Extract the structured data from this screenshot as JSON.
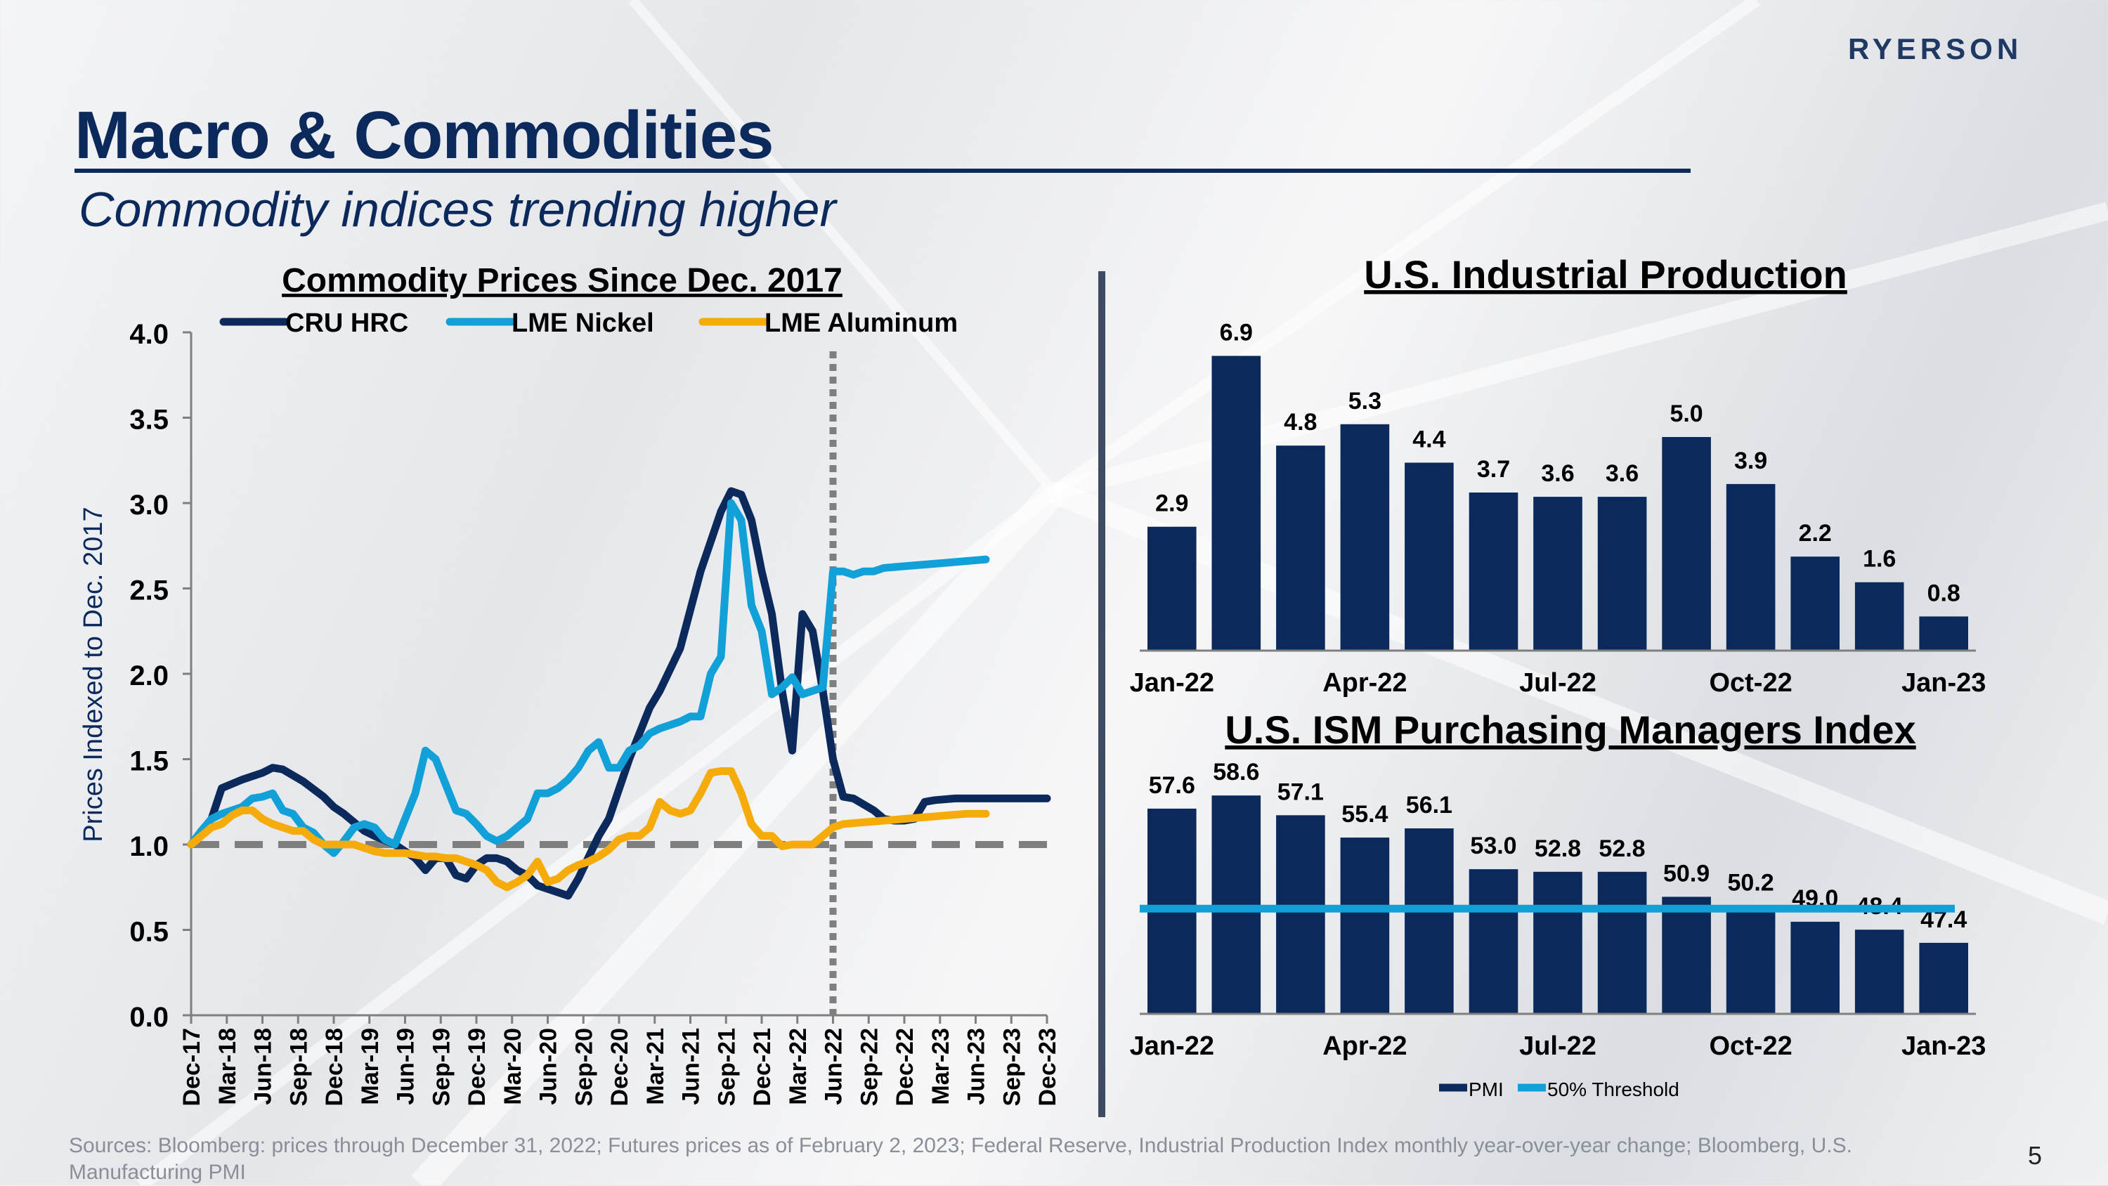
{
  "header": {
    "logo": "RYERSON",
    "title": "Macro & Commodities",
    "subtitle": "Commodity indices trending higher"
  },
  "footer": {
    "sources": "Sources: Bloomberg: prices through December 31, 2022; Futures prices as of February 2, 2023; Federal Reserve, Industrial Production Index monthly year-over-year change; Bloomberg, U.S. Manufacturing PMI",
    "page_number": "5"
  },
  "colors": {
    "navy": "#0b2a5b",
    "nickel": "#12a0d8",
    "aluminum": "#f5ab0a",
    "baseline": "#7f7f7f"
  },
  "chart_data": [
    {
      "type": "line",
      "title": "Commodity Prices Since Dec. 2017",
      "ylabel": "Prices Indexed to Dec. 2017",
      "xlabel": "",
      "ylim": [
        0,
        4
      ],
      "yticks": [
        "0.0",
        "0.5",
        "1.0",
        "1.5",
        "2.0",
        "2.5",
        "3.0",
        "3.5",
        "4.0"
      ],
      "x_tick_labels": [
        "Dec-17",
        "Mar-18",
        "Jun-18",
        "Sep-18",
        "Dec-18",
        "Mar-19",
        "Jun-19",
        "Sep-19",
        "Dec-19",
        "Mar-20",
        "Jun-20",
        "Sep-20",
        "Dec-20",
        "Mar-21",
        "Jun-21",
        "Sep-21",
        "Dec-21",
        "Mar-22",
        "Jun-22",
        "Sep-22",
        "Dec-22",
        "Mar-23",
        "Jun-23",
        "Sep-23",
        "Dec-23"
      ],
      "futures_divider_month": 63,
      "reference_line": 1.0,
      "legend_position": "top",
      "series": [
        {
          "name": "CRU HRC",
          "color": "#0b2a5b",
          "points": [
            [
              0,
              1.0
            ],
            [
              2,
              1.15
            ],
            [
              3,
              1.33
            ],
            [
              5,
              1.38
            ],
            [
              7,
              1.42
            ],
            [
              8,
              1.45
            ],
            [
              9,
              1.44
            ],
            [
              11,
              1.37
            ],
            [
              13,
              1.28
            ],
            [
              14,
              1.22
            ],
            [
              15,
              1.18
            ],
            [
              17,
              1.08
            ],
            [
              18,
              1.05
            ],
            [
              20,
              1.0
            ],
            [
              22,
              0.92
            ],
            [
              23,
              0.85
            ],
            [
              24,
              0.92
            ],
            [
              25,
              0.92
            ],
            [
              26,
              0.82
            ],
            [
              27,
              0.8
            ],
            [
              28,
              0.88
            ],
            [
              29,
              0.92
            ],
            [
              30,
              0.92
            ],
            [
              31,
              0.9
            ],
            [
              32,
              0.85
            ],
            [
              33,
              0.82
            ],
            [
              34,
              0.76
            ],
            [
              36,
              0.72
            ],
            [
              37,
              0.7
            ],
            [
              38,
              0.8
            ],
            [
              40,
              1.05
            ],
            [
              41,
              1.15
            ],
            [
              43,
              1.5
            ],
            [
              44,
              1.65
            ],
            [
              45,
              1.8
            ],
            [
              46,
              1.9
            ],
            [
              48,
              2.15
            ],
            [
              50,
              2.6
            ],
            [
              52,
              2.95
            ],
            [
              53,
              3.07
            ],
            [
              54,
              3.05
            ],
            [
              55,
              2.9
            ],
            [
              56,
              2.6
            ],
            [
              57,
              2.35
            ],
            [
              58,
              1.9
            ],
            [
              59,
              1.55
            ],
            [
              60,
              2.35
            ],
            [
              61,
              2.25
            ],
            [
              62,
              1.9
            ],
            [
              63,
              1.5
            ],
            [
              64,
              1.28
            ],
            [
              65,
              1.27
            ],
            [
              67,
              1.2
            ],
            [
              68,
              1.15
            ],
            [
              69,
              1.14
            ],
            [
              70,
              1.14
            ],
            [
              71,
              1.15
            ],
            [
              72,
              1.25
            ],
            [
              73,
              1.26
            ],
            [
              75,
              1.27
            ],
            [
              76,
              1.27
            ],
            [
              78,
              1.27
            ],
            [
              80,
              1.27
            ],
            [
              82,
              1.27
            ],
            [
              84,
              1.27
            ]
          ]
        },
        {
          "name": "LME Nickel",
          "color": "#12a0d8",
          "points": [
            [
              0,
              1.0
            ],
            [
              1,
              1.08
            ],
            [
              2,
              1.15
            ],
            [
              3,
              1.18
            ],
            [
              4,
              1.2
            ],
            [
              5,
              1.22
            ],
            [
              6,
              1.27
            ],
            [
              7,
              1.28
            ],
            [
              8,
              1.3
            ],
            [
              9,
              1.2
            ],
            [
              10,
              1.18
            ],
            [
              11,
              1.1
            ],
            [
              12,
              1.07
            ],
            [
              13,
              1.0
            ],
            [
              14,
              0.95
            ],
            [
              15,
              1.02
            ],
            [
              16,
              1.1
            ],
            [
              17,
              1.12
            ],
            [
              18,
              1.1
            ],
            [
              19,
              1.03
            ],
            [
              20,
              1.0
            ],
            [
              21,
              1.15
            ],
            [
              22,
              1.3
            ],
            [
              23,
              1.55
            ],
            [
              24,
              1.5
            ],
            [
              25,
              1.35
            ],
            [
              26,
              1.2
            ],
            [
              27,
              1.18
            ],
            [
              28,
              1.12
            ],
            [
              29,
              1.05
            ],
            [
              30,
              1.02
            ],
            [
              31,
              1.05
            ],
            [
              32,
              1.1
            ],
            [
              33,
              1.15
            ],
            [
              34,
              1.3
            ],
            [
              35,
              1.3
            ],
            [
              36,
              1.33
            ],
            [
              37,
              1.38
            ],
            [
              38,
              1.45
            ],
            [
              39,
              1.55
            ],
            [
              40,
              1.6
            ],
            [
              41,
              1.45
            ],
            [
              42,
              1.45
            ],
            [
              43,
              1.55
            ],
            [
              44,
              1.58
            ],
            [
              45,
              1.65
            ],
            [
              46,
              1.68
            ],
            [
              47,
              1.7
            ],
            [
              48,
              1.72
            ],
            [
              49,
              1.75
            ],
            [
              50,
              1.75
            ],
            [
              51,
              2.0
            ],
            [
              52,
              2.1
            ],
            [
              53,
              3.0
            ],
            [
              54,
              2.9
            ],
            [
              55,
              2.4
            ],
            [
              56,
              2.25
            ],
            [
              57,
              1.88
            ],
            [
              58,
              1.92
            ],
            [
              59,
              1.98
            ],
            [
              60,
              1.88
            ],
            [
              61,
              1.9
            ],
            [
              62,
              1.92
            ],
            [
              63,
              2.6
            ],
            [
              64,
              2.6
            ],
            [
              65,
              2.58
            ],
            [
              66,
              2.6
            ],
            [
              67,
              2.6
            ],
            [
              68,
              2.62
            ],
            [
              70,
              2.63
            ],
            [
              72,
              2.64
            ],
            [
              74,
              2.65
            ],
            [
              76,
              2.66
            ],
            [
              78,
              2.67
            ]
          ]
        },
        {
          "name": "LME Aluminum",
          "color": "#f5ab0a",
          "points": [
            [
              0,
              1.0
            ],
            [
              1,
              1.05
            ],
            [
              2,
              1.1
            ],
            [
              3,
              1.12
            ],
            [
              4,
              1.17
            ],
            [
              5,
              1.2
            ],
            [
              6,
              1.2
            ],
            [
              7,
              1.15
            ],
            [
              8,
              1.12
            ],
            [
              9,
              1.1
            ],
            [
              10,
              1.08
            ],
            [
              11,
              1.08
            ],
            [
              12,
              1.03
            ],
            [
              13,
              1.0
            ],
            [
              14,
              1.0
            ],
            [
              15,
              1.0
            ],
            [
              16,
              1.0
            ],
            [
              17,
              0.98
            ],
            [
              18,
              0.96
            ],
            [
              19,
              0.95
            ],
            [
              20,
              0.95
            ],
            [
              21,
              0.95
            ],
            [
              22,
              0.94
            ],
            [
              23,
              0.93
            ],
            [
              24,
              0.93
            ],
            [
              25,
              0.92
            ],
            [
              26,
              0.92
            ],
            [
              27,
              0.9
            ],
            [
              28,
              0.88
            ],
            [
              29,
              0.85
            ],
            [
              30,
              0.78
            ],
            [
              31,
              0.75
            ],
            [
              32,
              0.78
            ],
            [
              33,
              0.82
            ],
            [
              34,
              0.9
            ],
            [
              35,
              0.78
            ],
            [
              36,
              0.8
            ],
            [
              37,
              0.85
            ],
            [
              38,
              0.88
            ],
            [
              39,
              0.9
            ],
            [
              40,
              0.93
            ],
            [
              41,
              0.97
            ],
            [
              42,
              1.03
            ],
            [
              43,
              1.05
            ],
            [
              44,
              1.05
            ],
            [
              45,
              1.1
            ],
            [
              46,
              1.25
            ],
            [
              47,
              1.2
            ],
            [
              48,
              1.18
            ],
            [
              49,
              1.2
            ],
            [
              50,
              1.3
            ],
            [
              51,
              1.42
            ],
            [
              52,
              1.43
            ],
            [
              53,
              1.43
            ],
            [
              54,
              1.3
            ],
            [
              55,
              1.12
            ],
            [
              56,
              1.05
            ],
            [
              57,
              1.05
            ],
            [
              58,
              0.99
            ],
            [
              59,
              1.0
            ],
            [
              60,
              1.0
            ],
            [
              61,
              1.0
            ],
            [
              62,
              1.05
            ],
            [
              63,
              1.1
            ],
            [
              64,
              1.12
            ],
            [
              66,
              1.13
            ],
            [
              68,
              1.14
            ],
            [
              70,
              1.15
            ],
            [
              72,
              1.16
            ],
            [
              74,
              1.17
            ],
            [
              76,
              1.18
            ],
            [
              78,
              1.18
            ]
          ]
        }
      ]
    },
    {
      "type": "bar",
      "title": "U.S. Industrial Production",
      "ylabel": "",
      "xlabel": "",
      "categories": [
        "Jan-22",
        "Feb-22",
        "Mar-22",
        "Apr-22",
        "May-22",
        "Jun-22",
        "Jul-22",
        "Aug-22",
        "Sep-22",
        "Oct-22",
        "Nov-22",
        "Dec-22",
        "Jan-23"
      ],
      "x_tick_labels": [
        "Jan-22",
        "Apr-22",
        "Jul-22",
        "Oct-22",
        "Jan-23"
      ],
      "values": [
        2.9,
        6.9,
        4.8,
        5.3,
        4.4,
        3.7,
        3.6,
        3.6,
        5.0,
        3.9,
        2.2,
        1.6,
        0.8
      ],
      "data_labels": [
        "2.9",
        "6.9",
        "4.8",
        "5.3",
        "4.4",
        "3.7",
        "3.6",
        "3.6",
        "5.0",
        "3.9",
        "2.2",
        "1.6",
        "0.8"
      ],
      "ylim": [
        0,
        7.5
      ],
      "color": "#0b2a5b"
    },
    {
      "type": "bar",
      "title": "U.S. ISM Purchasing Managers Index",
      "ylabel": "",
      "xlabel": "",
      "categories": [
        "Jan-22",
        "Feb-22",
        "Mar-22",
        "Apr-22",
        "May-22",
        "Jun-22",
        "Jul-22",
        "Aug-22",
        "Sep-22",
        "Oct-22",
        "Nov-22",
        "Dec-22",
        "Jan-23"
      ],
      "x_tick_labels": [
        "Jan-22",
        "Apr-22",
        "Jul-22",
        "Oct-22",
        "Jan-23"
      ],
      "values": [
        57.6,
        58.6,
        57.1,
        55.4,
        56.1,
        53.0,
        52.8,
        52.8,
        50.9,
        50.2,
        49.0,
        48.4,
        47.4
      ],
      "data_labels": [
        "57.6",
        "58.6",
        "57.1",
        "55.4",
        "56.1",
        "53.0",
        "52.8",
        "52.8",
        "50.9",
        "50.2",
        "49.0",
        "48.4",
        "47.4"
      ],
      "ylim": [
        42,
        60
      ],
      "threshold": 50,
      "legend_position": "bottom",
      "series": [
        {
          "name": "PMI",
          "color": "#0b2a5b"
        },
        {
          "name": "50% Threshold",
          "color": "#12a0d8"
        }
      ]
    }
  ]
}
